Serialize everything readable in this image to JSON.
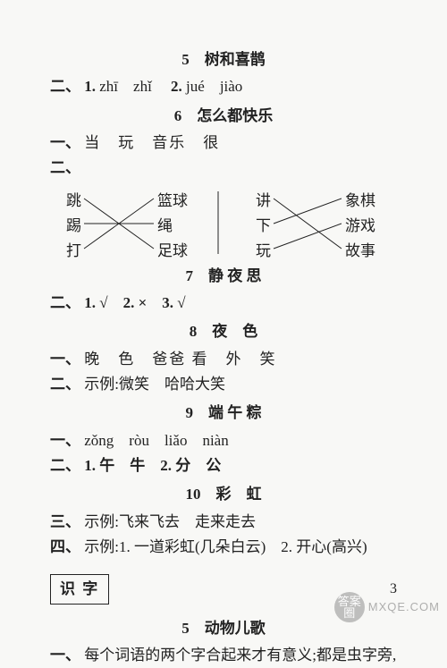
{
  "page_number": "3",
  "background_color": "#f8f8f6",
  "text_color": "#222222",
  "sections": {
    "s5": {
      "title": "5　树和喜鹊",
      "line1_label": "二、",
      "line1_n1": "1.",
      "line1_p1": "zhī　zhǐ",
      "line1_n2": "2.",
      "line1_p2": "jué　jiào"
    },
    "s6": {
      "title": "6　怎么都快乐",
      "line1_label": "一、",
      "line1_text": "当　玩　音乐　很",
      "line2_label": "二、",
      "match": {
        "left": [
          "跳",
          "踢",
          "打"
        ],
        "mid": [
          "篮球",
          "绳",
          "足球"
        ],
        "right_v": [
          "讲",
          "下",
          "玩"
        ],
        "right": [
          "象棋",
          "游戏",
          "故事"
        ],
        "left_edges": [
          [
            0,
            2
          ],
          [
            1,
            1
          ],
          [
            2,
            0
          ]
        ],
        "right_edges": [
          [
            0,
            2
          ],
          [
            1,
            0
          ],
          [
            2,
            1
          ]
        ]
      }
    },
    "s7": {
      "title": "7　静 夜 思",
      "line1_label": "二、",
      "line1_text": "1. √　2. ×　3. √"
    },
    "s8": {
      "title": "8　夜　色",
      "line1_label": "一、",
      "line1_text": "晚　色　爸爸 看　外　笑",
      "line2_label": "二、",
      "line2_text": "示例:微笑　哈哈大笑"
    },
    "s9": {
      "title": "9　端 午 粽",
      "line1_label": "一、",
      "line1_text_pinyin": "zǒng　ròu　liǎo　niàn",
      "line2_label": "二、",
      "line2_text": "1. 午　牛　2. 分　公"
    },
    "s10": {
      "title": "10　彩　虹",
      "line1_label": "三、",
      "line1_text": "示例:飞来飞去　走来走去",
      "line2_label": "四、",
      "line2_text": "示例:1. 一道彩虹(几朵白云)　2. 开心(高兴)"
    },
    "shizi": {
      "box": "识 字",
      "title": "5　动物儿歌",
      "line1_label": "一、",
      "line1_text": "每个词语的两个字合起来才有意义;都是虫字旁,"
    }
  },
  "watermark": {
    "circle_top": "答案",
    "circle_bottom": "圈",
    "url": "MXQE.COM"
  }
}
